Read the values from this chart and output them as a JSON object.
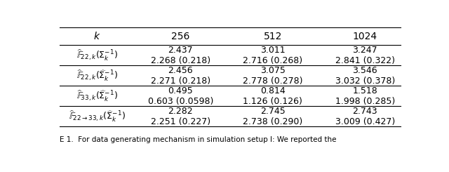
{
  "col_headers": [
    "$k$",
    "256",
    "512",
    "1024"
  ],
  "rows": [
    {
      "label": "$\\widehat{\\mathbb{F}}_{22,k}(\\Sigma_k^{-1})$",
      "values": [
        [
          "2.437",
          "3.011",
          "3.247"
        ],
        [
          "2.268 (0.218)",
          "2.716 (0.268)",
          "2.841 (0.322)"
        ]
      ]
    },
    {
      "label": "$\\widehat{\\mathbb{F}}_{22,k}(\\widehat{\\Sigma}_k^{-1})$",
      "values": [
        [
          "2.456",
          "3.075",
          "3.546"
        ],
        [
          "2.271 (0.218)",
          "2.778 (0.278)",
          "3.032 (0.378)"
        ]
      ]
    },
    {
      "label": "$\\widehat{\\mathbb{F}}_{33,k}(\\widehat{\\Sigma}_k^{-1})$",
      "values": [
        [
          "0.495",
          "0.814",
          "1.518"
        ],
        [
          "0.603 (0.0598)",
          "1.126 (0.126)",
          "1.998 (0.285)"
        ]
      ]
    },
    {
      "label": "$\\widehat{\\mathbb{F}}_{22\\to33,k}(\\widehat{\\Sigma}_k^{-1})$",
      "values": [
        [
          "2.282",
          "2.745",
          "2.743"
        ],
        [
          "2.251 (0.227)",
          "2.738 (0.290)",
          "3.009 (0.427)"
        ]
      ]
    }
  ],
  "caption": "E 1.  For data generating mechanism in simulation setup I: We reported the",
  "figsize": [
    6.4,
    2.45
  ],
  "dpi": 100,
  "background": "#ffffff",
  "line_color": "#000000",
  "text_color": "#000000",
  "header_fontsize": 10,
  "cell_fontsize": 9,
  "label_fontsize": 9
}
